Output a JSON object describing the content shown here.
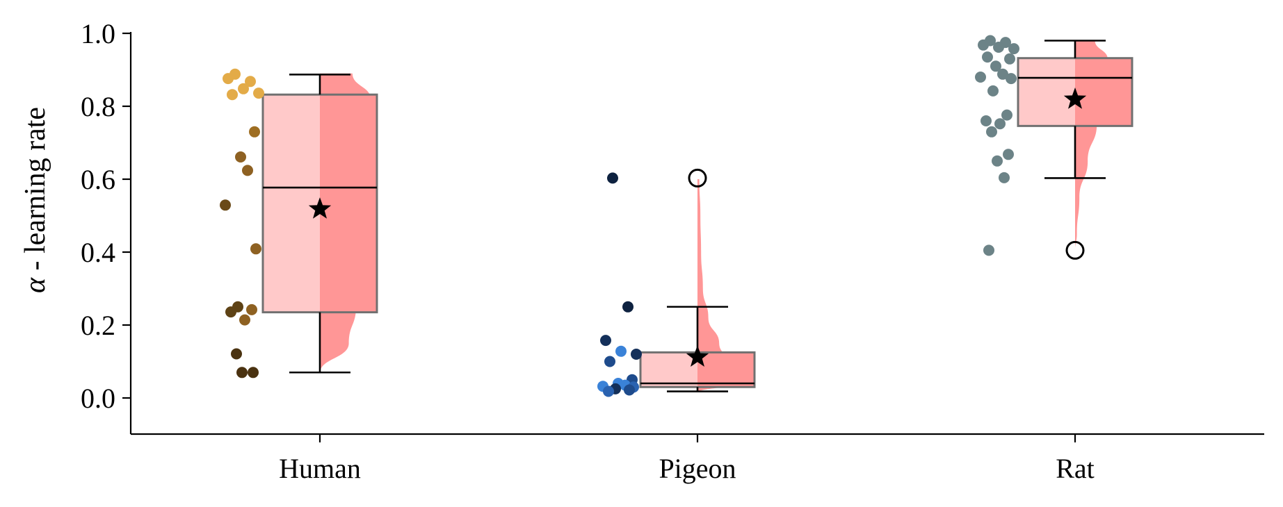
{
  "chart_data": {
    "type": "box",
    "ylabel_symbol": "α",
    "ylabel_text": " - learning rate",
    "ylim": [
      -0.1,
      1.0
    ],
    "yticks": [
      0.0,
      0.2,
      0.4,
      0.6,
      0.8,
      1.0
    ],
    "ytick_labels": [
      "0.0",
      "0.2",
      "0.4",
      "0.6",
      "0.8",
      "1.0"
    ],
    "grid": false,
    "categories": [
      "Human",
      "Pigeon",
      "Rat"
    ],
    "colors": {
      "box_left_fill": "#ffc9c9",
      "box_right_fill": "#ff9696",
      "violin_fill": "#ff9696",
      "box_edge": "#707070",
      "whisker": "#000000"
    },
    "groups": [
      {
        "name": "Human",
        "box": {
          "q1": 0.235,
          "median": 0.577,
          "q3": 0.832,
          "whisker_low": 0.07,
          "whisker_high": 0.887
        },
        "mean": 0.518,
        "outliers": [],
        "violin": [
          [
            0.068,
            0.0
          ],
          [
            0.15,
            0.08
          ],
          [
            0.25,
            0.1
          ],
          [
            0.35,
            0.07
          ],
          [
            0.45,
            0.05
          ],
          [
            0.55,
            0.07
          ],
          [
            0.65,
            0.11
          ],
          [
            0.75,
            0.14
          ],
          [
            0.82,
            0.14
          ],
          [
            0.89,
            0.09
          ]
        ],
        "points": [
          {
            "y": 0.888,
            "color": "#e3ab48"
          },
          {
            "y": 0.868,
            "color": "#e3ab48"
          },
          {
            "y": 0.876,
            "color": "#e3ab48"
          },
          {
            "y": 0.848,
            "color": "#e3ab48"
          },
          {
            "y": 0.836,
            "color": "#e3ab48"
          },
          {
            "y": 0.832,
            "color": "#e3ab48"
          },
          {
            "y": 0.73,
            "color": "#9e6e22"
          },
          {
            "y": 0.661,
            "color": "#8e6122"
          },
          {
            "y": 0.624,
            "color": "#8e6122"
          },
          {
            "y": 0.529,
            "color": "#6a4a18"
          },
          {
            "y": 0.409,
            "color": "#8e6122"
          },
          {
            "y": 0.25,
            "color": "#5e4215"
          },
          {
            "y": 0.242,
            "color": "#8e6122"
          },
          {
            "y": 0.236,
            "color": "#5e4215"
          },
          {
            "y": 0.214,
            "color": "#8e6122"
          },
          {
            "y": 0.121,
            "color": "#4a3210"
          },
          {
            "y": 0.07,
            "color": "#4a3210"
          },
          {
            "y": 0.07,
            "color": "#4a3210"
          }
        ]
      },
      {
        "name": "Pigeon",
        "box": {
          "q1": 0.03,
          "median": 0.04,
          "q3": 0.125,
          "whisker_low": 0.018,
          "whisker_high": 0.25
        },
        "mean": 0.112,
        "outliers": [
          0.603
        ],
        "violin": [
          [
            0.015,
            0.0
          ],
          [
            0.04,
            0.11
          ],
          [
            0.07,
            0.12
          ],
          [
            0.1,
            0.08
          ],
          [
            0.15,
            0.06
          ],
          [
            0.22,
            0.03
          ],
          [
            0.3,
            0.015
          ],
          [
            0.4,
            0.01
          ],
          [
            0.5,
            0.008
          ],
          [
            0.6,
            0.005
          ]
        ],
        "points": [
          {
            "y": 0.603,
            "color": "#0e2240"
          },
          {
            "y": 0.25,
            "color": "#0e2240"
          },
          {
            "y": 0.158,
            "color": "#14305a"
          },
          {
            "y": 0.128,
            "color": "#3a82d8"
          },
          {
            "y": 0.12,
            "color": "#14305a"
          },
          {
            "y": 0.1,
            "color": "#1e4b8c"
          },
          {
            "y": 0.05,
            "color": "#1e4b8c"
          },
          {
            "y": 0.04,
            "color": "#3a82d8"
          },
          {
            "y": 0.035,
            "color": "#3a82d8"
          },
          {
            "y": 0.032,
            "color": "#3a82d8"
          },
          {
            "y": 0.03,
            "color": "#2a62b0"
          },
          {
            "y": 0.025,
            "color": "#14305a"
          },
          {
            "y": 0.022,
            "color": "#1e4b8c"
          },
          {
            "y": 0.018,
            "color": "#2a62b0"
          }
        ]
      },
      {
        "name": "Rat",
        "box": {
          "q1": 0.746,
          "median": 0.878,
          "q3": 0.932,
          "whisker_low": 0.603,
          "whisker_high": 0.98
        },
        "mean": 0.819,
        "outliers": [
          0.405
        ],
        "violin": [
          [
            0.405,
            0.0
          ],
          [
            0.45,
            0.005
          ],
          [
            0.55,
            0.012
          ],
          [
            0.65,
            0.035
          ],
          [
            0.75,
            0.06
          ],
          [
            0.82,
            0.085
          ],
          [
            0.88,
            0.1
          ],
          [
            0.93,
            0.09
          ],
          [
            0.98,
            0.055
          ]
        ],
        "points": [
          {
            "y": 0.98,
            "color": "#6c8387"
          },
          {
            "y": 0.975,
            "color": "#6c8387"
          },
          {
            "y": 0.968,
            "color": "#6c8387"
          },
          {
            "y": 0.962,
            "color": "#6c8387"
          },
          {
            "y": 0.958,
            "color": "#6c8387"
          },
          {
            "y": 0.935,
            "color": "#6c8387"
          },
          {
            "y": 0.93,
            "color": "#6c8387"
          },
          {
            "y": 0.91,
            "color": "#6c8387"
          },
          {
            "y": 0.888,
            "color": "#6c8387"
          },
          {
            "y": 0.88,
            "color": "#6c8387"
          },
          {
            "y": 0.876,
            "color": "#6c8387"
          },
          {
            "y": 0.842,
            "color": "#6c8387"
          },
          {
            "y": 0.776,
            "color": "#6c8387"
          },
          {
            "y": 0.76,
            "color": "#6c8387"
          },
          {
            "y": 0.752,
            "color": "#6c8387"
          },
          {
            "y": 0.73,
            "color": "#6c8387"
          },
          {
            "y": 0.668,
            "color": "#6c8387"
          },
          {
            "y": 0.65,
            "color": "#6c8387"
          },
          {
            "y": 0.604,
            "color": "#6c8387"
          },
          {
            "y": 0.405,
            "color": "#6c8387"
          }
        ]
      }
    ]
  }
}
